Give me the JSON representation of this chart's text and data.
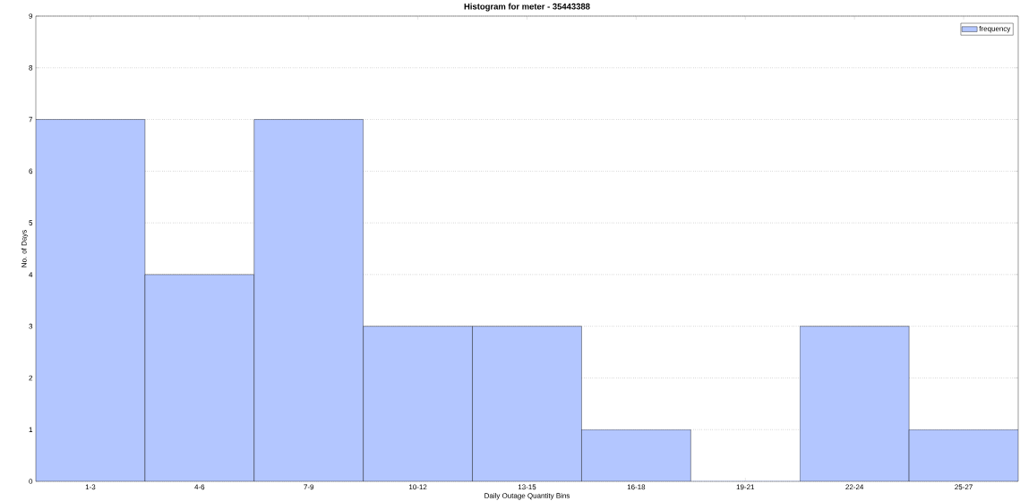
{
  "chart_data": {
    "type": "bar",
    "title": "Histogram for meter - 35443388",
    "xlabel": "Daily Outage Quantity Bins",
    "ylabel": "No. of Days",
    "categories": [
      "1-3",
      "4-6",
      "7-9",
      "10-12",
      "13-15",
      "16-18",
      "19-21",
      "22-24",
      "25-27"
    ],
    "series": [
      {
        "name": "frequency",
        "color": "#b3c6ff",
        "values": [
          7,
          4,
          7,
          3,
          3,
          1,
          0,
          3,
          1
        ]
      }
    ],
    "ylim": [
      0,
      9
    ],
    "yticks": [
      0,
      1,
      2,
      3,
      4,
      5,
      6,
      7,
      8,
      9
    ],
    "grid": "y",
    "legend": "top right"
  }
}
